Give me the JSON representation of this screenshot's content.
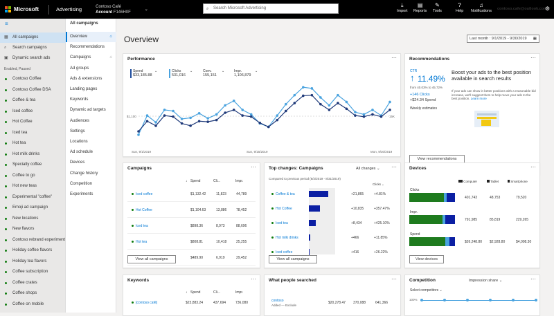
{
  "topbar": {
    "brand": "Microsoft",
    "product": "Advertising",
    "account_name": "Contoso Café",
    "account_label": "Account",
    "account_id": "F146H0F",
    "search_placeholder": "Search Microsoft Advertising",
    "import_label": "Import",
    "reports_label": "Reports",
    "tools_label": "Tools",
    "help_label": "Help",
    "notifications_label": "Notifications",
    "user_email": "contoso.cafe@outlook.com"
  },
  "leftnav": {
    "top_items": [
      "All campaigns",
      "Search campaigns",
      "Dynamic search ads"
    ],
    "filter_label": "Enabled, Paused",
    "campaigns": [
      "Contoso Coffee",
      "Contoso Coffee DSA",
      "Coffee & tea",
      "Iced coffee",
      "Hot Coffee",
      "Iced tea",
      "Hot tea",
      "Hot milk drinks",
      "Specialty coffee",
      "Coffee to go",
      "Hot new teas",
      "Experimental \"coffee\"",
      "Emoji ad campaign",
      "New locations",
      "New flavors",
      "Contoso rebrand experiment",
      "Holiday coffee flavors",
      "Holiday tea flavors",
      "Coffee subscription",
      "Coffee crates",
      "Coffee shops",
      "Coffee on mobile"
    ]
  },
  "subnav": {
    "header": "All campaigns",
    "items": [
      "Overview",
      "Recommendations",
      "Campaigns",
      "Ad groups",
      "Ads & extensions",
      "Landing pages",
      "Keywords",
      "Dynamic ad targets",
      "Audiences",
      "Settings",
      "Locations",
      "Ad schedule",
      "Devices",
      "Change history",
      "Competition",
      "Experiments"
    ]
  },
  "main": {
    "title": "Overview",
    "date_range": "Last month : 9/1/2019 - 9/30/2019"
  },
  "performance": {
    "title": "Performance",
    "metrics": [
      {
        "label": "Spend",
        "value": "$33,185.88",
        "color": "#1f4e9e"
      },
      {
        "label": "Clicks",
        "value": "531,016",
        "color": "#4aa3df"
      },
      {
        "label": "Conv.",
        "value": "155,151",
        "color": ""
      },
      {
        "label": "Impr.",
        "value": "1,106,879",
        "color": ""
      }
    ],
    "y_left_label": "$1,100",
    "y_right_label": "15K",
    "x_labels": [
      "Sun, 9/1/2019",
      "Sun, 9/15/2019",
      "Mon, 9/30/2019"
    ]
  },
  "chart_data": {
    "type": "line",
    "x": [
      "9/1",
      "9/2",
      "9/3",
      "9/4",
      "9/5",
      "9/6",
      "9/7",
      "9/8",
      "9/9",
      "9/10",
      "9/11",
      "9/12",
      "9/13",
      "9/14",
      "9/15",
      "9/16",
      "9/17",
      "9/18",
      "9/19",
      "9/20",
      "9/21",
      "9/22",
      "9/23",
      "9/24",
      "9/25",
      "9/26",
      "9/27",
      "9/28",
      "9/29",
      "9/30"
    ],
    "series": [
      {
        "name": "Spend",
        "color": "#1f3a7a",
        "values": [
          620,
          800,
          720,
          900,
          880,
          760,
          720,
          800,
          790,
          820,
          950,
          1000,
          900,
          880,
          770,
          700,
          820,
          980,
          1120,
          1250,
          1260,
          1100,
          1000,
          1120,
          1020,
          900,
          880,
          920,
          880,
          1000
        ]
      },
      {
        "name": "Clicks",
        "color": "#4aa3df",
        "values": [
          560,
          900,
          780,
          1000,
          980,
          840,
          860,
          940,
          850,
          920,
          1080,
          1160,
          1000,
          920,
          760,
          700,
          900,
          1100,
          1260,
          1400,
          1380,
          1220,
          1080,
          1260,
          1140,
          960,
          920,
          1000,
          900,
          1140
        ]
      }
    ]
  },
  "recommendations": {
    "title": "Recommendations",
    "ctr_label": "CTR",
    "ctr_value": "11.49%",
    "ctr_from": "from 40.03% to 45.72%",
    "clicks_delta": "+146 Clicks",
    "spend_delta": "+$24.34 Spend",
    "weekly": "Weekly estimates",
    "headline": "Boost your ads to the best position available in search results",
    "body": "If your ads can show in better positions with a reasonable bid increase, we'll suggest them to help move your ads to the best position.",
    "learn_more": "Learn more",
    "button": "View recommendations"
  },
  "campaigns_card": {
    "title": "Campaigns",
    "headers": [
      "Spend",
      "Cli...",
      "Impr."
    ],
    "rows": [
      {
        "name": "Iced coffee",
        "spend": "$1,132.42",
        "clicks": "11,823",
        "impr": "44,789"
      },
      {
        "name": "Hot Coffee",
        "spend": "$1,104.63",
        "clicks": "13,886",
        "impr": "78,452"
      },
      {
        "name": "Iced tea",
        "spend": "$898.36",
        "clicks": "8,973",
        "impr": "88,696"
      },
      {
        "name": "Hot tea",
        "spend": "$808.81",
        "clicks": "10,418",
        "impr": "25,255"
      },
      {
        "name": "Hot milk drinks",
        "spend": "$489.90",
        "clicks": "6,919",
        "impr": "29,452"
      }
    ],
    "button": "View all campaigns"
  },
  "topchanges": {
    "title": "Top changes: Campaigns",
    "filter": "All changes",
    "compared": "Compared to previous period (8/2/2019 - 8/31/2019)",
    "metric_header": "Clicks",
    "rows": [
      {
        "name": "Coffee & tea",
        "delta": "+21,865",
        "pct": "+4.81%",
        "bar": 0.62
      },
      {
        "name": "Hot Coffee",
        "delta": "+10,835",
        "pct": "+357.47%",
        "bar": 0.35
      },
      {
        "name": "Iced tea",
        "delta": "+8,434",
        "pct": "+425.10%",
        "bar": 0.22
      },
      {
        "name": "Hot milk drinks",
        "delta": "+466",
        "pct": "+11.85%",
        "bar": 0.04
      },
      {
        "name": "Iced coffee",
        "delta": "+416",
        "pct": "+26.22%",
        "bar": 0.03
      }
    ],
    "button": "View all campaigns"
  },
  "devices": {
    "title": "Devices",
    "legend": [
      "Computer",
      "Tablet",
      "Smartphone"
    ],
    "rows": [
      {
        "label": "Clicks",
        "computer": "401,743",
        "tablet": "48,753",
        "smartphone": "79,520",
        "share": [
          0.76,
          0.06,
          0.18
        ]
      },
      {
        "label": "Impr.",
        "computer": "791,985",
        "tablet": "85,819",
        "smartphone": "229,265",
        "share": [
          0.72,
          0.06,
          0.22
        ]
      },
      {
        "label": "Spend",
        "computer": "$26,248.80",
        "tablet": "$2,928.80",
        "smartphone": "$4,008.30",
        "share": [
          0.79,
          0.09,
          0.12
        ]
      }
    ],
    "button": "View devices"
  },
  "keywords": {
    "title": "Keywords",
    "headers": [
      "Spend",
      "Cli...",
      "Impr."
    ],
    "row": {
      "name": "[contoso café]",
      "spend": "$23,883.24",
      "clicks": "437,694",
      "impr": "736,080"
    }
  },
  "searched": {
    "title": "What people searched",
    "row": {
      "name": "contoso",
      "added": "Added",
      "exclude": "Exclude",
      "spend": "$20,278.47",
      "clicks": "370,088",
      "impr": "641,366"
    }
  },
  "competition": {
    "title": "Competition",
    "metric": "Impression share",
    "select": "Select competitors",
    "y_labels": [
      "100%",
      "0%"
    ]
  }
}
